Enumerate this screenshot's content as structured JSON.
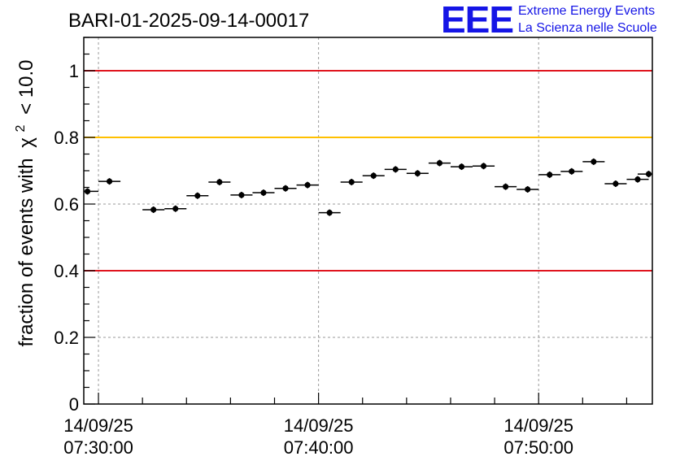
{
  "chart_data": {
    "type": "scatter",
    "title": "BARI-01-2025-09-14-00017",
    "logo": {
      "text": "EEE",
      "line1": "Extreme Energy Events",
      "line2": "La Scienza nelle Scuole",
      "color": "#1515e6"
    },
    "ylabel_prefix": "fraction of events with",
    "ylabel_chi": "χ",
    "ylabel_exp": "2",
    "ylabel_suffix": "< 10.0",
    "ylim": [
      0,
      1.1
    ],
    "yticks": [
      {
        "value": 0,
        "label": "0"
      },
      {
        "value": 0.2,
        "label": "0.2"
      },
      {
        "value": 0.4,
        "label": "0.4"
      },
      {
        "value": 0.6,
        "label": "0.6"
      },
      {
        "value": 0.8,
        "label": "0.8"
      },
      {
        "value": 1.0,
        "label": "1"
      }
    ],
    "xlim": [
      "07:29:20",
      "07:55:10"
    ],
    "xticks": [
      {
        "time": "07:30:00",
        "date": "14/09/25",
        "label": "07:30:00"
      },
      {
        "time": "07:40:00",
        "date": "14/09/25",
        "label": "07:40:00"
      },
      {
        "time": "07:50:00",
        "date": "14/09/25",
        "label": "07:50:00"
      }
    ],
    "reference_lines": [
      {
        "y": 1.0,
        "color": "#e0141e"
      },
      {
        "y": 0.8,
        "color": "#ffc000"
      },
      {
        "y": 0.4,
        "color": "#e0141e"
      }
    ],
    "grid": true,
    "marker_color": "#000000",
    "points": [
      {
        "x": "07:29:30",
        "y": 0.638
      },
      {
        "x": "07:30:30",
        "y": 0.668
      },
      {
        "x": "07:32:30",
        "y": 0.583
      },
      {
        "x": "07:33:30",
        "y": 0.586
      },
      {
        "x": "07:34:30",
        "y": 0.625
      },
      {
        "x": "07:35:30",
        "y": 0.666
      },
      {
        "x": "07:36:30",
        "y": 0.627
      },
      {
        "x": "07:37:30",
        "y": 0.634
      },
      {
        "x": "07:38:30",
        "y": 0.647
      },
      {
        "x": "07:39:30",
        "y": 0.657
      },
      {
        "x": "07:40:30",
        "y": 0.574
      },
      {
        "x": "07:41:30",
        "y": 0.666
      },
      {
        "x": "07:42:30",
        "y": 0.685
      },
      {
        "x": "07:43:30",
        "y": 0.704
      },
      {
        "x": "07:44:30",
        "y": 0.692
      },
      {
        "x": "07:45:30",
        "y": 0.723
      },
      {
        "x": "07:46:30",
        "y": 0.712
      },
      {
        "x": "07:47:30",
        "y": 0.714
      },
      {
        "x": "07:48:30",
        "y": 0.652
      },
      {
        "x": "07:49:30",
        "y": 0.644
      },
      {
        "x": "07:50:30",
        "y": 0.688
      },
      {
        "x": "07:51:30",
        "y": 0.698
      },
      {
        "x": "07:52:30",
        "y": 0.727
      },
      {
        "x": "07:53:30",
        "y": 0.661
      },
      {
        "x": "07:54:30",
        "y": 0.674
      },
      {
        "x": "07:55:00",
        "y": 0.69
      }
    ]
  }
}
